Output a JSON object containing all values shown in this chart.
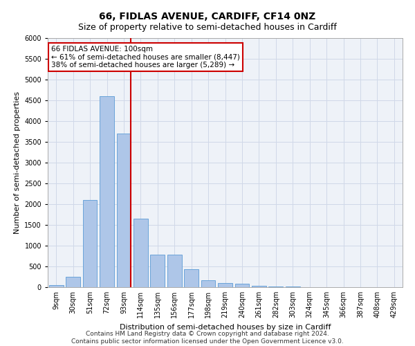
{
  "title": "66, FIDLAS AVENUE, CARDIFF, CF14 0NZ",
  "subtitle": "Size of property relative to semi-detached houses in Cardiff",
  "xlabel": "Distribution of semi-detached houses by size in Cardiff",
  "ylabel": "Number of semi-detached properties",
  "categories": [
    "9sqm",
    "30sqm",
    "51sqm",
    "72sqm",
    "93sqm",
    "114sqm",
    "135sqm",
    "156sqm",
    "177sqm",
    "198sqm",
    "219sqm",
    "240sqm",
    "261sqm",
    "282sqm",
    "303sqm",
    "324sqm",
    "345sqm",
    "366sqm",
    "387sqm",
    "408sqm",
    "429sqm"
  ],
  "values": [
    50,
    250,
    2100,
    4600,
    3700,
    1650,
    780,
    780,
    430,
    160,
    100,
    80,
    30,
    20,
    10,
    5,
    3,
    2,
    1,
    1,
    0
  ],
  "bar_color": "#aec6e8",
  "bar_edge_color": "#5b9bd5",
  "vline_color": "#cc0000",
  "annotation_text": "66 FIDLAS AVENUE: 100sqm\n← 61% of semi-detached houses are smaller (8,447)\n38% of semi-detached houses are larger (5,289) →",
  "annotation_box_color": "#ffffff",
  "annotation_box_edge": "#cc0000",
  "ylim": [
    0,
    6000
  ],
  "yticks": [
    0,
    500,
    1000,
    1500,
    2000,
    2500,
    3000,
    3500,
    4000,
    4500,
    5000,
    5500,
    6000
  ],
  "footer": "Contains HM Land Registry data © Crown copyright and database right 2024.\nContains public sector information licensed under the Open Government Licence v3.0.",
  "grid_color": "#d0d8e8",
  "bg_color": "#eef2f8",
  "title_fontsize": 10,
  "subtitle_fontsize": 9,
  "axis_label_fontsize": 8,
  "tick_fontsize": 7,
  "annotation_fontsize": 7.5,
  "footer_fontsize": 6.5
}
